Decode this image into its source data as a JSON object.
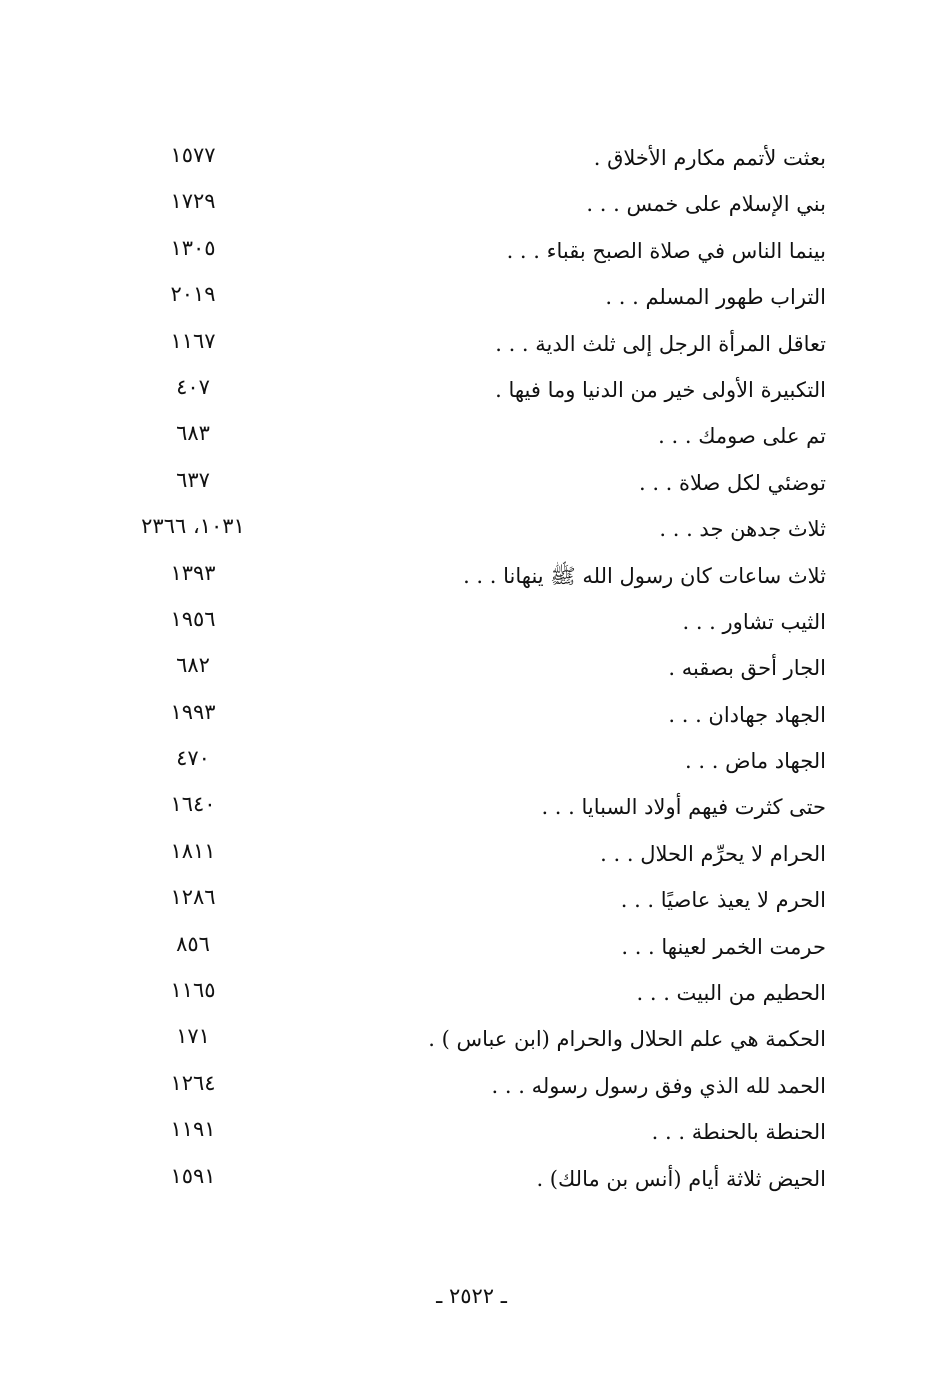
{
  "entries": [
    {
      "text": "بعثت لأتمم مكارم الأخلاق .",
      "ref": "١٥٧٧"
    },
    {
      "text": "بني الإسلام على خمس . . .",
      "ref": "١٧٢٩"
    },
    {
      "text": "بينما الناس في صلاة الصبح بقباء . . .",
      "ref": "١٣٠٥"
    },
    {
      "text": "التراب طهور المسلم . . .",
      "ref": "٢٠١٩"
    },
    {
      "text": "تعاقل المرأة الرجل إلى ثلث الدية . . .",
      "ref": "١١٦٧"
    },
    {
      "text": "التكبيرة الأولى خير من الدنيا وما فيها .",
      "ref": "٤٠٧"
    },
    {
      "text": "تم على صومك . . .",
      "ref": "٦٨٣"
    },
    {
      "text": "توضئي لكل صلاة . . .",
      "ref": "٦٣٧"
    },
    {
      "text": "ثلاث جدهن جد . . .",
      "ref": "١٠٣١، ٢٣٦٦"
    },
    {
      "text": "ثلاث ساعات كان رسول الله ﷺ ينهانا . . .",
      "ref": "١٣٩٣"
    },
    {
      "text": "الثيب تشاور . . .",
      "ref": "١٩٥٦"
    },
    {
      "text": "الجار أحق بصقبه .",
      "ref": "٦٨٢"
    },
    {
      "text": "الجهاد جهادان . . .",
      "ref": "١٩٩٣"
    },
    {
      "text": "الجهاد ماض . . .",
      "ref": "٤٧٠"
    },
    {
      "text": "حتى كثرت فيهم أولاد السبايا . . .",
      "ref": "١٦٤٠"
    },
    {
      "text": "الحرام لا يحرِّم الحلال . . .",
      "ref": "١٨١١"
    },
    {
      "text": "الحرم لا يعيذ عاصيًا . . .",
      "ref": "١٢٨٦"
    },
    {
      "text": "حرمت الخمر لعينها . . .",
      "ref": "٨٥٦"
    },
    {
      "text": "الحطيم من البيت . . .",
      "ref": "١١٦٥"
    },
    {
      "text": "الحكمة هي علم الحلال والحرام (ابن عباس ) .",
      "ref": "١٧١"
    },
    {
      "text": "الحمد لله الذي وفق رسول رسوله . . .",
      "ref": "١٢٦٤"
    },
    {
      "text": "الحنطة بالحنطة . . .",
      "ref": "١١٩١"
    },
    {
      "text": "الحيض ثلاثة أيام (أنس بن مالك) .",
      "ref": "١٥٩١"
    }
  ],
  "page_number": "ـ ٢٥٢٢ ـ"
}
